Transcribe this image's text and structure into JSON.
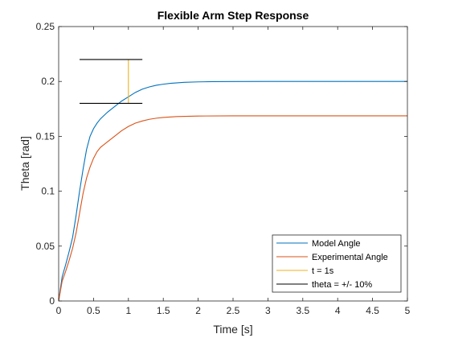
{
  "chart_data": {
    "type": "line",
    "title": "Flexible Arm Step Response",
    "xlabel": "Time [s]",
    "ylabel": "Theta [rad]",
    "xlim": [
      0,
      5
    ],
    "ylim": [
      0,
      0.25
    ],
    "xticks": [
      "0",
      "0.5",
      "1",
      "1.5",
      "2",
      "2.5",
      "3",
      "3.5",
      "4",
      "4.5",
      "5"
    ],
    "yticks": [
      "0",
      "0.05",
      "0.1",
      "0.15",
      "0.2",
      "0.25"
    ],
    "grid": false,
    "legend_position": "bottom-right",
    "series": [
      {
        "name": "Model Angle",
        "color": "#0072bd",
        "x": [
          0,
          0.05,
          0.1,
          0.15,
          0.2,
          0.25,
          0.3,
          0.35,
          0.4,
          0.45,
          0.5,
          0.55,
          0.6,
          0.65,
          0.7,
          0.8,
          0.9,
          1.0,
          1.1,
          1.2,
          1.3,
          1.4,
          1.5,
          1.6,
          1.8,
          2.0,
          2.2,
          2.5,
          3.0,
          3.5,
          4.0,
          4.5,
          5.0
        ],
        "y": [
          0,
          0.022,
          0.033,
          0.045,
          0.058,
          0.078,
          0.1,
          0.12,
          0.138,
          0.15,
          0.157,
          0.162,
          0.166,
          0.169,
          0.172,
          0.177,
          0.182,
          0.186,
          0.19,
          0.193,
          0.195,
          0.1965,
          0.1975,
          0.1983,
          0.1992,
          0.1996,
          0.1998,
          0.1999,
          0.2,
          0.2,
          0.2,
          0.2,
          0.2
        ]
      },
      {
        "name": "Experimental Angle",
        "color": "#d95319",
        "x": [
          0,
          0.05,
          0.1,
          0.15,
          0.2,
          0.25,
          0.3,
          0.35,
          0.4,
          0.45,
          0.5,
          0.55,
          0.6,
          0.7,
          0.8,
          0.9,
          1.0,
          1.1,
          1.2,
          1.3,
          1.4,
          1.5,
          1.7,
          2.0,
          2.5,
          3.0,
          3.5,
          4.0,
          4.5,
          5.0
        ],
        "y": [
          0,
          0.018,
          0.027,
          0.037,
          0.048,
          0.062,
          0.08,
          0.098,
          0.112,
          0.122,
          0.13,
          0.136,
          0.14,
          0.145,
          0.15,
          0.155,
          0.159,
          0.162,
          0.164,
          0.1655,
          0.1665,
          0.1672,
          0.168,
          0.1685,
          0.1687,
          0.1687,
          0.1687,
          0.1687,
          0.1687,
          0.1687
        ]
      },
      {
        "name": "t = 1s",
        "color": "#edb120",
        "x": [
          1,
          1
        ],
        "y": [
          0.18,
          0.22
        ]
      },
      {
        "name": "theta = +/- 10%",
        "color": "#000000",
        "segments": [
          {
            "x": [
              0.3,
              1.2
            ],
            "y": [
              0.22,
              0.22
            ]
          },
          {
            "x": [
              0.3,
              1.2
            ],
            "y": [
              0.18,
              0.18
            ]
          }
        ]
      }
    ]
  }
}
